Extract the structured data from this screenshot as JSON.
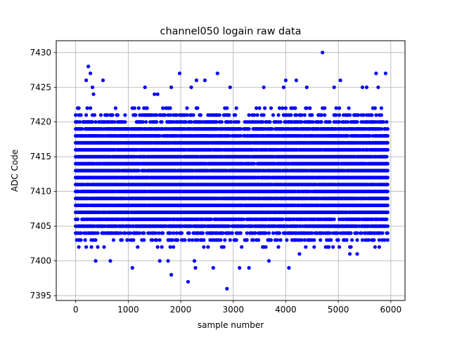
{
  "chart_data": {
    "type": "scatter",
    "title": "channel050 logain raw data",
    "xlabel": "sample number",
    "ylabel": "ADC Code",
    "xlim": [
      -370,
      6270
    ],
    "ylim": [
      7394.3,
      7431.7
    ],
    "xticks": [
      0,
      1000,
      2000,
      3000,
      4000,
      5000,
      6000
    ],
    "xtick_labels": [
      "0",
      "1000",
      "2000",
      "3000",
      "4000",
      "5000",
      "6000"
    ],
    "yticks": [
      7395,
      7400,
      7405,
      7410,
      7415,
      7420,
      7425,
      7430
    ],
    "ytick_labels": [
      "7395",
      "7400",
      "7405",
      "7410",
      "7415",
      "7420",
      "7425",
      "7430"
    ],
    "grid": true,
    "marker_color": "#0000ff",
    "series": [
      {
        "x_start": 0,
        "x_end": 5940,
        "x_step": 20,
        "core_min": 7402,
        "core_max": 7422,
        "outliers": [
          [
            240,
            7428
          ],
          [
            280,
            7427
          ],
          [
            200,
            7426
          ],
          [
            520,
            7426
          ],
          [
            320,
            7425
          ],
          [
            340,
            7424
          ],
          [
            1320,
            7425
          ],
          [
            1500,
            7424
          ],
          [
            1560,
            7424
          ],
          [
            1820,
            7425
          ],
          [
            1980,
            7427
          ],
          [
            2200,
            7425
          ],
          [
            2300,
            7426
          ],
          [
            2460,
            7426
          ],
          [
            2700,
            7427
          ],
          [
            2940,
            7425
          ],
          [
            3580,
            7425
          ],
          [
            3960,
            7425
          ],
          [
            4000,
            7426
          ],
          [
            4200,
            7426
          ],
          [
            4400,
            7425
          ],
          [
            4700,
            7430
          ],
          [
            4920,
            7425
          ],
          [
            5040,
            7426
          ],
          [
            5460,
            7425
          ],
          [
            5540,
            7425
          ],
          [
            5720,
            7427
          ],
          [
            5900,
            7427
          ],
          [
            5760,
            7425
          ],
          [
            380,
            7400
          ],
          [
            660,
            7400
          ],
          [
            1080,
            7399
          ],
          [
            1600,
            7400
          ],
          [
            1760,
            7400
          ],
          [
            1820,
            7398
          ],
          [
            2140,
            7397
          ],
          [
            2280,
            7399
          ],
          [
            2260,
            7400
          ],
          [
            2620,
            7399
          ],
          [
            2880,
            7396
          ],
          [
            3120,
            7399
          ],
          [
            3300,
            7399
          ],
          [
            3680,
            7400
          ],
          [
            4060,
            7399
          ],
          [
            4260,
            7401
          ],
          [
            5360,
            7401
          ],
          [
            5220,
            7401
          ]
        ]
      }
    ]
  }
}
